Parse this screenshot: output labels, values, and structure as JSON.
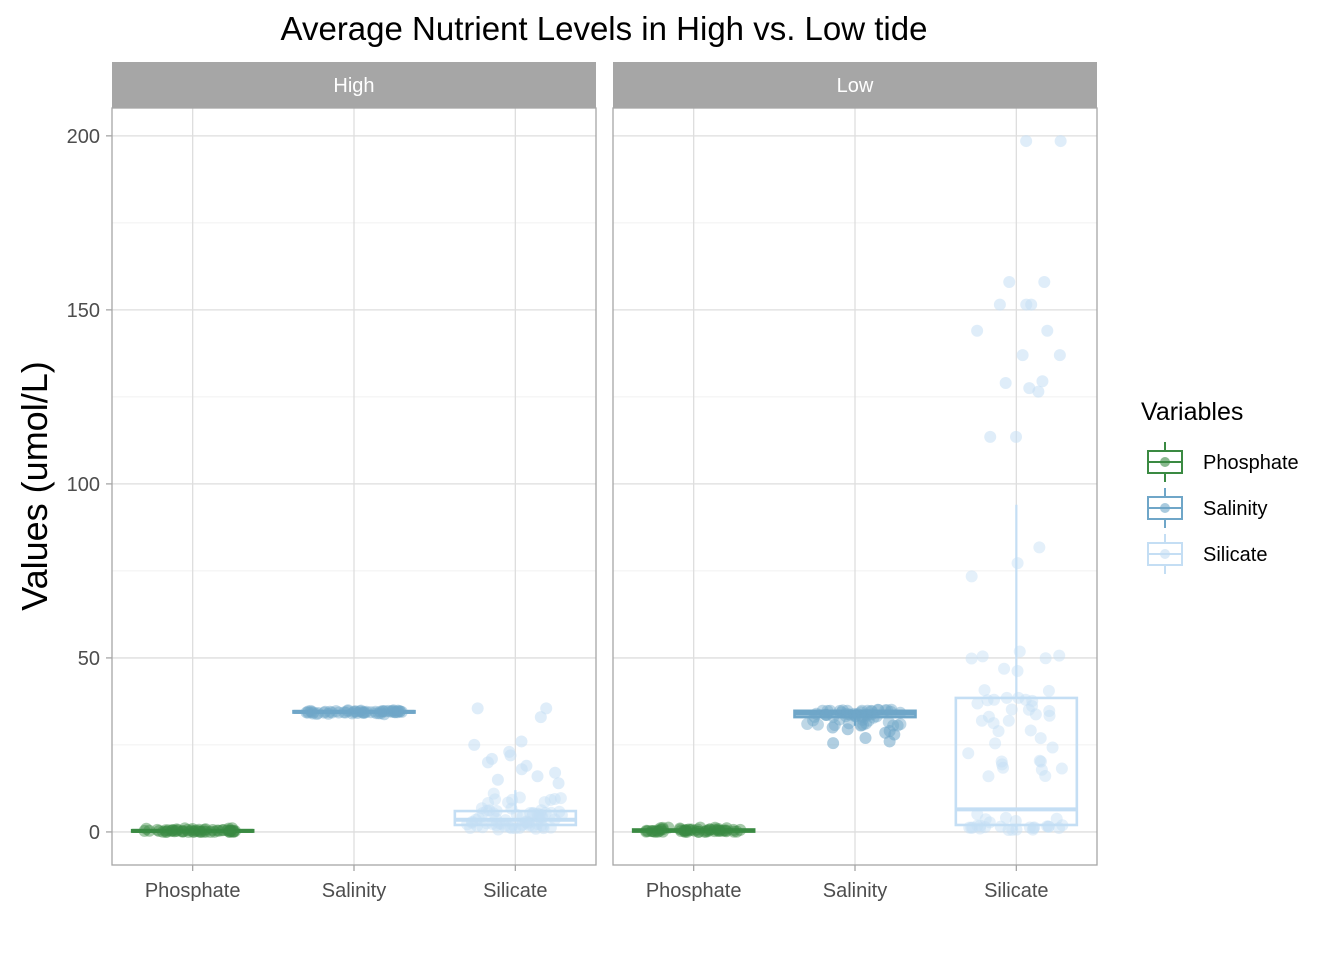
{
  "chart_data": {
    "type": "boxplot",
    "title": "Average Nutrient Levels in High vs. Low tide",
    "xlabel": "",
    "ylabel": "Values (umol/L)",
    "categories": [
      "Phosphate",
      "Salinity",
      "Silicate"
    ],
    "ylim": [
      -9.5,
      208
    ],
    "yticks": [
      0,
      50,
      100,
      150,
      200
    ],
    "grid": true,
    "legend": {
      "title": "Variables",
      "position": "right",
      "items": [
        {
          "label": "Phosphate",
          "color": "#3a8a42"
        },
        {
          "label": "Salinity",
          "color": "#6fa6c8"
        },
        {
          "label": "Silicate",
          "color": "#c4def4"
        }
      ]
    },
    "facets": [
      {
        "label": "High",
        "boxes": [
          {
            "category": "Phosphate",
            "min": 0.0,
            "q1": 0.1,
            "median": 0.3,
            "q3": 0.5,
            "max": 1.2
          },
          {
            "category": "Salinity",
            "min": 33.8,
            "q1": 34.3,
            "median": 34.5,
            "q3": 34.7,
            "max": 35.0
          },
          {
            "category": "Silicate",
            "min": 0.5,
            "q1": 2.0,
            "median": 3.5,
            "q3": 6.0,
            "max": 12.0
          }
        ],
        "outliers": [
          {
            "category": "Silicate",
            "values": [
              14,
              15,
              16,
              17,
              18,
              19,
              20,
              21,
              22,
              23,
              25,
              26,
              33,
              35.5,
              35.5
            ]
          }
        ]
      },
      {
        "label": "Low",
        "boxes": [
          {
            "category": "Phosphate",
            "min": 0.0,
            "q1": 0.1,
            "median": 0.4,
            "q3": 0.7,
            "max": 1.5
          },
          {
            "category": "Salinity",
            "min": 30.5,
            "q1": 33.0,
            "median": 34.0,
            "q3": 34.8,
            "max": 35.2
          },
          {
            "category": "Silicate",
            "min": 0.5,
            "q1": 2.0,
            "median": 6.5,
            "q3": 38.5,
            "max": 94.0
          }
        ],
        "outliers": [
          {
            "category": "Salinity",
            "values": [
              25.5,
              26,
              27,
              28,
              28.5,
              29,
              29.5,
              30
            ]
          },
          {
            "category": "Silicate",
            "values": [
              113.5,
              113.5,
              126.5,
              127.5,
              129,
              129.5,
              137,
              137,
              144,
              144,
              151.5,
              151.5,
              151.5,
              158,
              158,
              198.5,
              198.5
            ]
          }
        ]
      }
    ]
  }
}
